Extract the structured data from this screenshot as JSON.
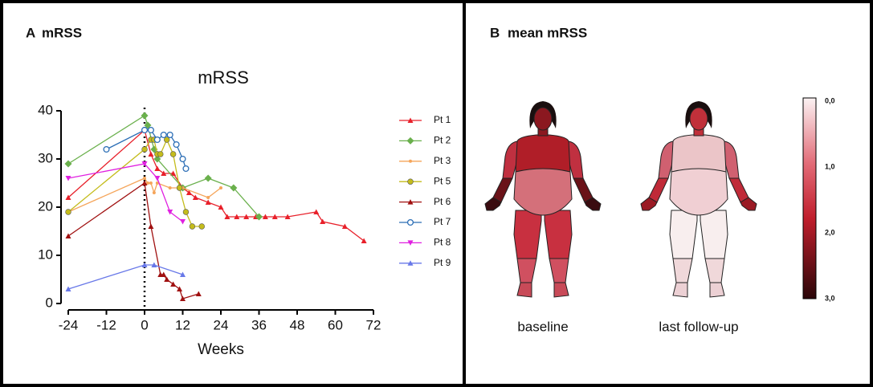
{
  "panel_a": {
    "letter": "A",
    "title": "mRSS"
  },
  "chart_data": {
    "type": "line",
    "title": "mRSS",
    "xlabel": "Weeks",
    "xlim": [
      -24,
      72
    ],
    "xticks": [
      -24,
      -12,
      0,
      12,
      24,
      36,
      48,
      60,
      72
    ],
    "ylim": [
      0,
      40
    ],
    "yticks": [
      0,
      10,
      20,
      30,
      40
    ],
    "series": [
      {
        "name": "Pt 1",
        "color": "#e8202a",
        "marker": "triangle",
        "x": [
          -24,
          0,
          2,
          4,
          6,
          9,
          12,
          14,
          16,
          20,
          24,
          26,
          29,
          32,
          35,
          38,
          41,
          45,
          54,
          56,
          63,
          69
        ],
        "values": [
          22,
          36,
          31,
          28,
          27,
          27,
          24,
          23,
          22,
          21,
          20,
          18,
          18,
          18,
          18,
          18,
          18,
          18,
          19,
          17,
          16,
          13
        ]
      },
      {
        "name": "Pt 2",
        "color": "#6ab04c",
        "marker": "diamond",
        "x": [
          -24,
          0,
          1,
          3,
          4,
          12,
          20,
          28,
          36
        ],
        "values": [
          29,
          39,
          37,
          32,
          30,
          24,
          26,
          24,
          18
        ]
      },
      {
        "name": "Pt 3",
        "color": "#f5a55a",
        "marker": "dot",
        "x": [
          -24,
          0,
          1,
          2,
          3,
          4,
          8,
          12,
          20,
          24
        ],
        "values": [
          19,
          26,
          25,
          25,
          23,
          25,
          24,
          24,
          22,
          24
        ]
      },
      {
        "name": "Pt 5",
        "color": "#c4bc1c",
        "marker": "circle",
        "x": [
          -24,
          0,
          2,
          3,
          4,
          5,
          7,
          9,
          11,
          13,
          15,
          18
        ],
        "values": [
          19,
          32,
          34,
          34,
          31,
          31,
          34,
          31,
          24,
          19,
          16,
          16
        ]
      },
      {
        "name": "Pt 6",
        "color": "#a01010",
        "marker": "triangle",
        "x": [
          -24,
          0,
          2,
          5,
          6,
          7,
          9,
          11,
          12,
          17
        ],
        "values": [
          14,
          25,
          16,
          6,
          6,
          5,
          4,
          3,
          1,
          2
        ]
      },
      {
        "name": "Pt 7",
        "color": "#2a6db5",
        "marker": "open-circle",
        "x": [
          -12,
          0,
          2,
          4,
          6,
          8,
          10,
          12,
          13
        ],
        "values": [
          32,
          36,
          36,
          34,
          35,
          35,
          33,
          30,
          28
        ]
      },
      {
        "name": "Pt 8",
        "color": "#e020e0",
        "marker": "triangle-down",
        "x": [
          -24,
          0,
          4,
          8,
          12
        ],
        "values": [
          26,
          29,
          26,
          19,
          17
        ]
      },
      {
        "name": "Pt 9",
        "color": "#6878e8",
        "marker": "triangle",
        "x": [
          -24,
          0,
          3,
          12
        ],
        "values": [
          3,
          8,
          8,
          6
        ]
      }
    ]
  },
  "panel_b": {
    "letter": "B",
    "title": "mean mRSS",
    "figures": [
      "baseline",
      "last follow-up"
    ],
    "colorbar": [
      "0,0",
      "1,0",
      "2,0",
      "3,0"
    ]
  }
}
